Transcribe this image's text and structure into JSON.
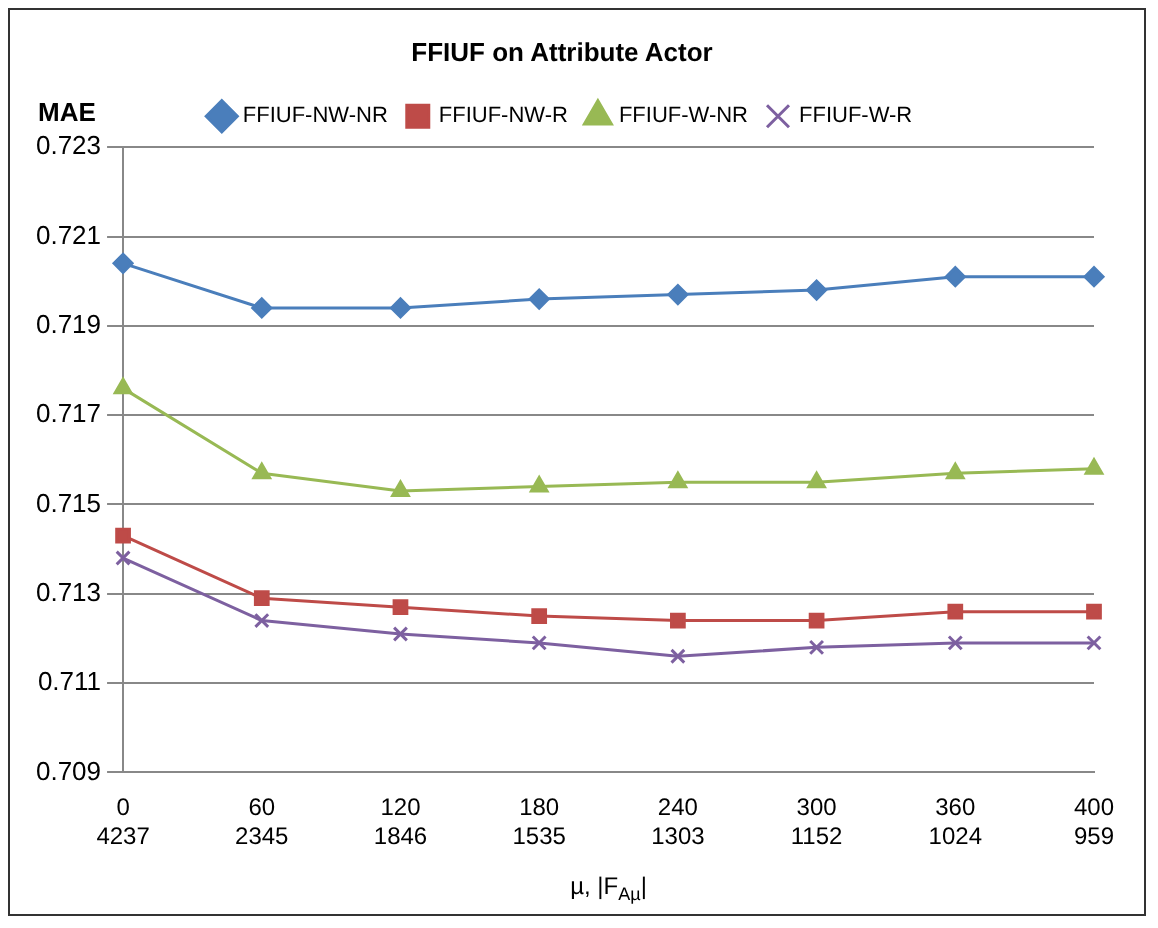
{
  "chart_data": {
    "type": "line",
    "title": "FFIUF on Attribute Actor",
    "ylabel": "MAE",
    "xlabel": "µ, |F$_{Aµ}$|",
    "categories": [
      "0\n4237",
      "60\n2345",
      "120\n1846",
      "180\n1535",
      "240\n1303",
      "300\n1152",
      "360\n1024",
      "400\n959"
    ],
    "series": [
      {
        "name": "FFIUF-NW-NR",
        "color": "#4a7ebb",
        "marker": "diamond",
        "values": [
          0.7204,
          0.7194,
          0.7194,
          0.7196,
          0.7197,
          0.7198,
          0.7201,
          0.7201
        ]
      },
      {
        "name": "FFIUF-NW-R",
        "color": "#be4b48",
        "marker": "square",
        "values": [
          0.7143,
          0.7129,
          0.7127,
          0.7125,
          0.7124,
          0.7124,
          0.7126,
          0.7126
        ]
      },
      {
        "name": "FFIUF-W-NR",
        "color": "#98b954",
        "marker": "triangle",
        "values": [
          0.7176,
          0.7157,
          0.7153,
          0.7154,
          0.7155,
          0.7155,
          0.7157,
          0.7158
        ]
      },
      {
        "name": "FFIUF-W-R",
        "color": "#7d60a0",
        "marker": "cross",
        "values": [
          0.7138,
          0.7124,
          0.7121,
          0.7119,
          0.7116,
          0.7118,
          0.7119,
          0.7119
        ]
      }
    ],
    "ylim": [
      0.709,
      0.723
    ],
    "yticks": [
      0.709,
      0.711,
      0.713,
      0.715,
      0.717,
      0.719,
      0.721,
      0.723
    ],
    "grid": "y",
    "legend": "top",
    "line_style": "solid"
  }
}
